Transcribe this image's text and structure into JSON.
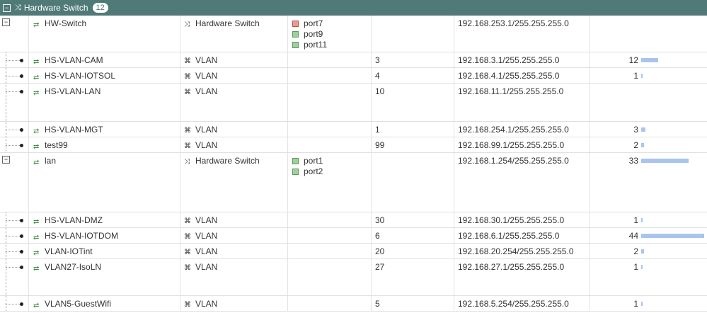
{
  "group": {
    "title": "Hardware Switch",
    "count": "12"
  },
  "max_refs": 44,
  "rows": [
    {
      "kind": "parent",
      "name": "HW-Switch",
      "type": "Hardware Switch",
      "members": [
        {
          "label": "port7",
          "status": "down"
        },
        {
          "label": "port9",
          "status": "up"
        },
        {
          "label": "port11",
          "status": "up"
        }
      ],
      "vlan": "",
      "ip": "192.168.253.1/255.255.255.0",
      "refs": null
    },
    {
      "kind": "child",
      "name": "HS-VLAN-CAM",
      "type": "VLAN",
      "members": [],
      "vlan": "3",
      "ip": "192.168.3.1/255.255.255.0",
      "refs": 12
    },
    {
      "kind": "child",
      "name": "HS-VLAN-IOTSOL",
      "type": "VLAN",
      "members": [],
      "vlan": "4",
      "ip": "192.168.4.1/255.255.255.0",
      "refs": 1
    },
    {
      "kind": "child",
      "name": "HS-VLAN-LAN",
      "type": "VLAN",
      "members": [],
      "vlan": "10",
      "ip": "192.168.11.1/255.255.255.0",
      "refs": null
    },
    {
      "kind": "child",
      "name": "HS-VLAN-MGT",
      "type": "VLAN",
      "members": [],
      "vlan": "1",
      "ip": "192.168.254.1/255.255.255.0",
      "refs": 3
    },
    {
      "kind": "child",
      "name": "test99",
      "type": "VLAN",
      "members": [],
      "vlan": "99",
      "ip": "192.168.99.1/255.255.255.0",
      "refs": 2
    },
    {
      "kind": "parent",
      "name": "lan",
      "type": "Hardware Switch",
      "members": [
        {
          "label": "port1",
          "status": "up"
        },
        {
          "label": "port2",
          "status": "up"
        }
      ],
      "vlan": "",
      "ip": "192.168.1.254/255.255.255.0",
      "refs": 33
    },
    {
      "kind": "child",
      "name": "HS-VLAN-DMZ",
      "type": "VLAN",
      "members": [],
      "vlan": "30",
      "ip": "192.168.30.1/255.255.255.0",
      "refs": 1
    },
    {
      "kind": "child",
      "name": "HS-VLAN-IOTDOM",
      "type": "VLAN",
      "members": [],
      "vlan": "6",
      "ip": "192.168.6.1/255.255.255.0",
      "refs": 44
    },
    {
      "kind": "child",
      "name": "VLAN-IOTint",
      "type": "VLAN",
      "members": [],
      "vlan": "20",
      "ip": "192.168.20.254/255.255.255.0",
      "refs": 2
    },
    {
      "kind": "child",
      "name": "VLAN27-IsoLN",
      "type": "VLAN",
      "members": [],
      "vlan": "27",
      "ip": "192.168.27.1/255.255.255.0",
      "refs": 1
    },
    {
      "kind": "child",
      "name": "VLAN5-GuestWifi",
      "type": "VLAN",
      "members": [],
      "vlan": "5",
      "ip": "192.168.5.254/255.255.255.0",
      "refs": 1
    }
  ],
  "icons": {
    "hardware_switch": "shuffle-icon",
    "vlan": "network-icon",
    "interface": "interface-icon",
    "port": "port-icon"
  },
  "colors": {
    "header_bg": "#4f7a78",
    "ref_bar": "#a9c4ee",
    "port_up": "#9fcf9f",
    "port_down": "#e89a98"
  }
}
